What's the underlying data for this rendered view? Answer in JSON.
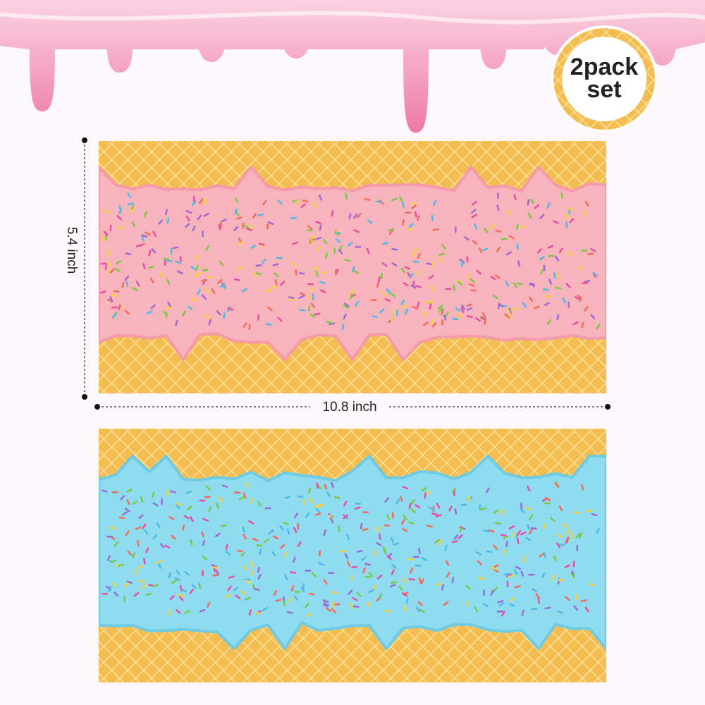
{
  "badge": {
    "lines": [
      "2pack",
      "set"
    ]
  },
  "dimensions": {
    "height": "5.4 inch",
    "width": "10.8 inch"
  }
}
